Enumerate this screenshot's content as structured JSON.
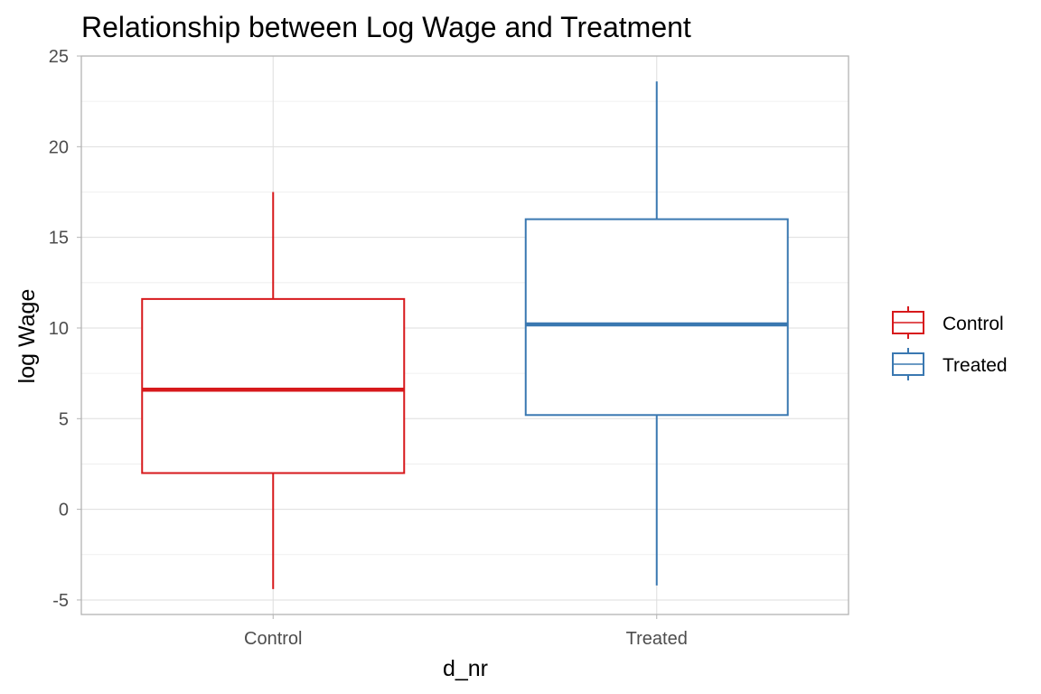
{
  "chart_data": {
    "type": "box",
    "title": "Relationship between Log Wage and Treatment",
    "xlabel": "d_nr",
    "ylabel": "log Wage",
    "ylim": [
      -5.8,
      25
    ],
    "yticks": [
      -5,
      0,
      5,
      10,
      15,
      20,
      25
    ],
    "ytick_labels": [
      "-5",
      "0",
      "5",
      "10",
      "15",
      "20",
      "25"
    ],
    "categories": [
      "Control",
      "Treated"
    ],
    "grid": true,
    "legend_position": "right",
    "series": [
      {
        "name": "Control",
        "color": "#d7191c",
        "min": -4.4,
        "q1": 2.0,
        "median": 6.6,
        "q3": 11.6,
        "max": 17.5
      },
      {
        "name": "Treated",
        "color": "#3a78b1",
        "min": -4.2,
        "q1": 5.2,
        "median": 10.2,
        "q3": 16.0,
        "max": 23.6
      }
    ]
  }
}
